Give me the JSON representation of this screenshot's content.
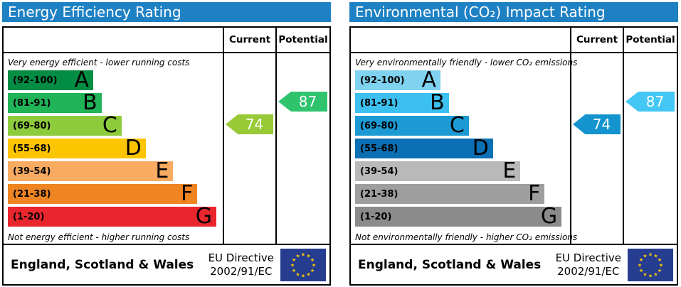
{
  "theme": {
    "header_color": "#1e81c4",
    "border_color": "#000000",
    "flag_bg": "#253c8f",
    "flag_star": "#ffcc00"
  },
  "panels": [
    {
      "title": "Energy Efficiency Rating",
      "columns": {
        "current": "Current",
        "potential": "Potential"
      },
      "top_note": "Very energy efficient - lower running costs",
      "bottom_note": "Not energy efficient - higher running costs",
      "bands": [
        {
          "letter": "A",
          "range": "(92-100)",
          "color": "#038c43",
          "width": "34%"
        },
        {
          "letter": "B",
          "range": "(81-91)",
          "color": "#20b358",
          "width": "44.5%"
        },
        {
          "letter": "C",
          "range": "(69-80)",
          "color": "#8ecb3c",
          "width": "54%"
        },
        {
          "letter": "D",
          "range": "(55-68)",
          "color": "#fdc400",
          "width": "65.5%"
        },
        {
          "letter": "E",
          "range": "(39-54)",
          "color": "#f9ab62",
          "width": "78.5%"
        },
        {
          "letter": "F",
          "range": "(21-38)",
          "color": "#ee8522",
          "width": "90%"
        },
        {
          "letter": "G",
          "range": "(1-20)",
          "color": "#e9262d",
          "width": "99%"
        }
      ],
      "current": {
        "value": "74",
        "band": "C",
        "row": 2,
        "color": "#97ca36"
      },
      "potential": {
        "value": "87",
        "band": "B",
        "row": 1,
        "color": "#2fc36e"
      },
      "footer": {
        "region": "England, Scotland & Wales",
        "directive_line1": "EU Directive",
        "directive_line2": "2002/91/EC"
      }
    },
    {
      "title": "Environmental (CO₂) Impact Rating",
      "columns": {
        "current": "Current",
        "potential": "Potential"
      },
      "top_note": "Very environmentally friendly - lower CO₂ emissions",
      "bottom_note": "Not environmentally friendly - higher CO₂ emissions",
      "bands": [
        {
          "letter": "A",
          "range": "(92-100)",
          "color": "#7fd2f0",
          "width": "34%"
        },
        {
          "letter": "B",
          "range": "(81-91)",
          "color": "#3cc0f0",
          "width": "44.5%"
        },
        {
          "letter": "C",
          "range": "(69-80)",
          "color": "#1c9ad4",
          "width": "54%"
        },
        {
          "letter": "D",
          "range": "(55-68)",
          "color": "#0b6fb4",
          "width": "65.5%"
        },
        {
          "letter": "E",
          "range": "(39-54)",
          "color": "#b9b9b9",
          "width": "78.5%"
        },
        {
          "letter": "F",
          "range": "(21-38)",
          "color": "#9e9e9e",
          "width": "90%"
        },
        {
          "letter": "G",
          "range": "(1-20)",
          "color": "#8b8b8b",
          "width": "98%"
        }
      ],
      "current": {
        "value": "74",
        "band": "C",
        "row": 2,
        "color": "#1494cf"
      },
      "potential": {
        "value": "87",
        "band": "B",
        "row": 1,
        "color": "#44c7f4"
      },
      "footer": {
        "region": "England, Scotland & Wales",
        "directive_line1": "EU Directive",
        "directive_line2": "2002/91/EC"
      }
    }
  ],
  "chart_data": [
    {
      "type": "bar",
      "title": "Energy Efficiency Rating",
      "orientation": "horizontal",
      "categories": [
        "A (92-100)",
        "B (81-91)",
        "C (69-80)",
        "D (55-68)",
        "E (39-54)",
        "F (21-38)",
        "G (1-20)"
      ],
      "values": [
        34,
        44.5,
        54,
        65.5,
        78.5,
        90,
        99
      ],
      "values_note": "fixed EPC template bar lengths, % of band column width",
      "band_colors": [
        "#038c43",
        "#20b358",
        "#8ecb3c",
        "#fdc400",
        "#f9ab62",
        "#ee8522",
        "#e9262d"
      ],
      "series": [
        {
          "name": "Current",
          "values": [
            74
          ],
          "band": "C"
        },
        {
          "name": "Potential",
          "values": [
            87
          ],
          "band": "B"
        }
      ],
      "xlabel": "",
      "ylabel": "",
      "annotations": [
        "Very energy efficient - lower running costs",
        "Not energy efficient - higher running costs",
        "England, Scotland & Wales",
        "EU Directive 2002/91/EC"
      ]
    },
    {
      "type": "bar",
      "title": "Environmental (CO₂) Impact Rating",
      "orientation": "horizontal",
      "categories": [
        "A (92-100)",
        "B (81-91)",
        "C (69-80)",
        "D (55-68)",
        "E (39-54)",
        "F (21-38)",
        "G (1-20)"
      ],
      "values": [
        34,
        44.5,
        54,
        65.5,
        78.5,
        90,
        98
      ],
      "values_note": "fixed EPC template bar lengths, % of band column width",
      "band_colors": [
        "#7fd2f0",
        "#3cc0f0",
        "#1c9ad4",
        "#0b6fb4",
        "#b9b9b9",
        "#9e9e9e",
        "#8b8b8b"
      ],
      "series": [
        {
          "name": "Current",
          "values": [
            74
          ],
          "band": "C"
        },
        {
          "name": "Potential",
          "values": [
            87
          ],
          "band": "B"
        }
      ],
      "xlabel": "",
      "ylabel": "",
      "annotations": [
        "Very environmentally friendly - lower CO₂ emissions",
        "Not environmentally friendly - higher CO₂ emissions",
        "England, Scotland & Wales",
        "EU Directive 2002/91/EC"
      ]
    }
  ]
}
